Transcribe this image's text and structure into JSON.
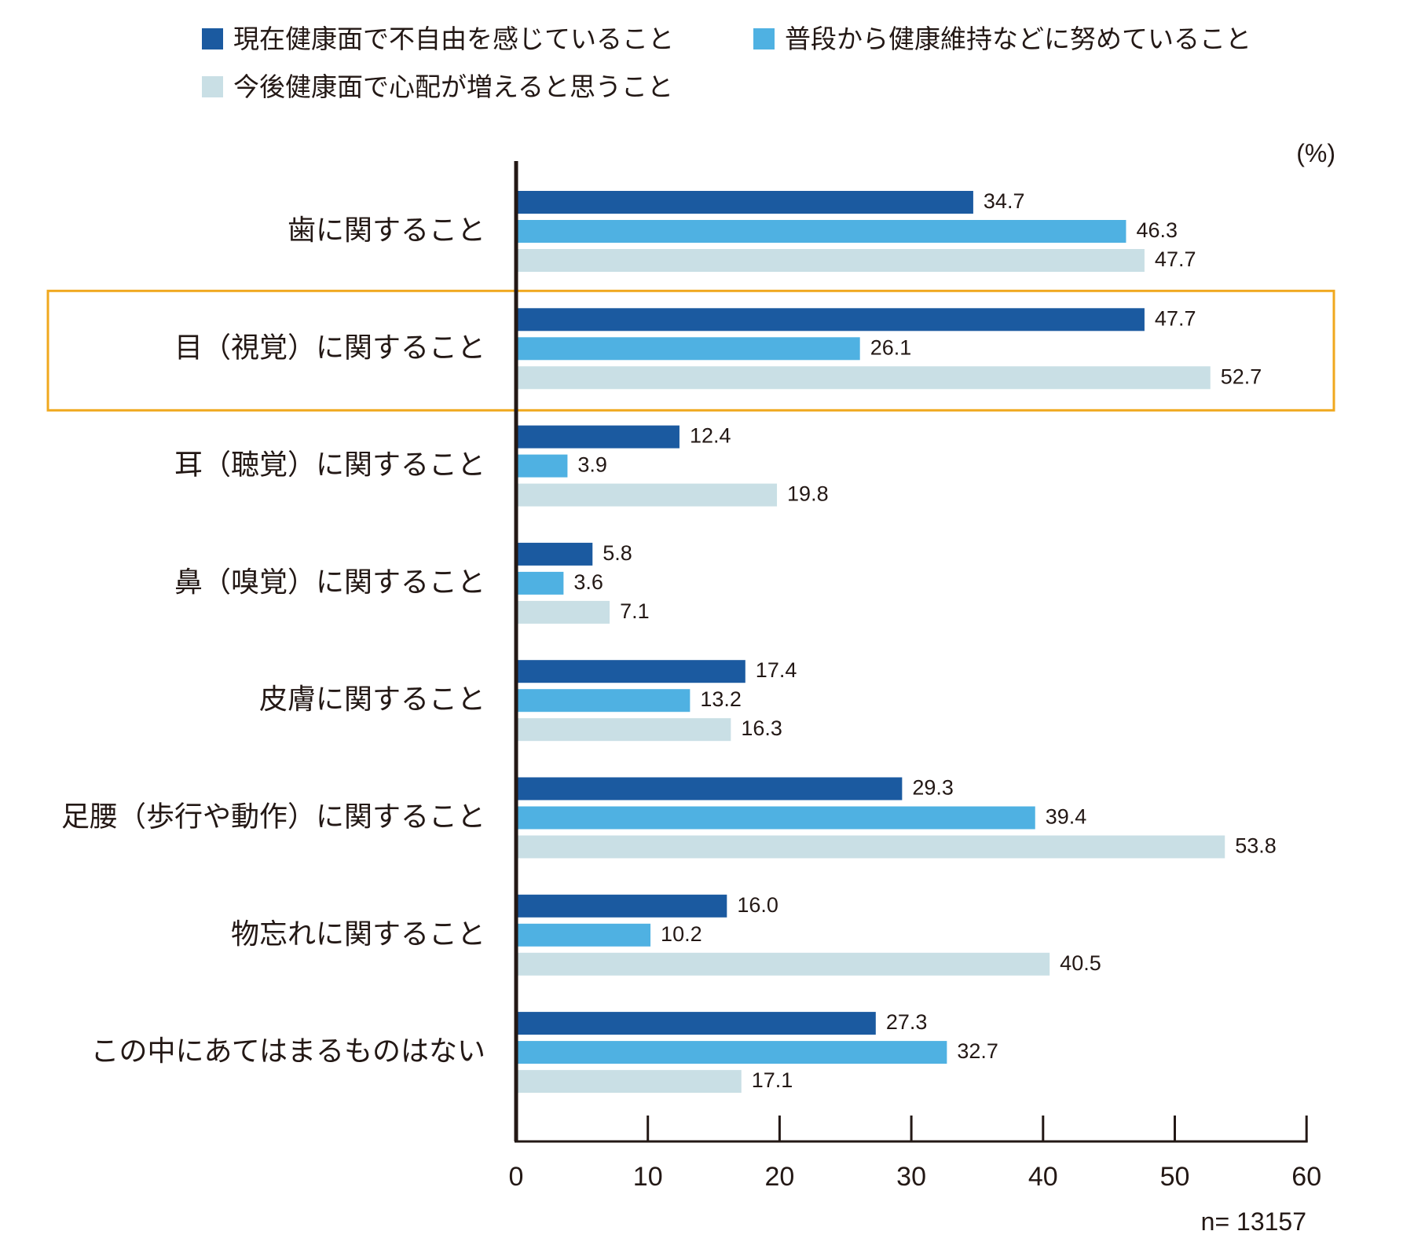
{
  "chart_data": {
    "type": "bar",
    "orientation": "horizontal",
    "unit": "(%)",
    "sample_note": "n= 13157",
    "xlim": [
      0,
      60
    ],
    "xticks": [
      0,
      10,
      20,
      30,
      40,
      50,
      60
    ],
    "categories": [
      "歯に関すること",
      "目（視覚）に関すること",
      "耳（聴覚）に関すること",
      "鼻（嗅覚）に関すること",
      "皮膚に関すること",
      "足腰（歩行や動作）に関すること",
      "物忘れに関すること",
      "この中にあてはまるものはない"
    ],
    "series": [
      {
        "name": "現在健康面で不自由を感じていること",
        "color": "#1b5aa0",
        "values": [
          34.7,
          47.7,
          12.4,
          5.8,
          17.4,
          29.3,
          16.0,
          27.3
        ]
      },
      {
        "name": "普段から健康維持などに努めていること",
        "color": "#4fb1e2",
        "values": [
          46.3,
          26.1,
          3.9,
          3.6,
          13.2,
          39.4,
          10.2,
          32.7
        ]
      },
      {
        "name": "今後健康面で心配が増えると思うこと",
        "color": "#c9dfe5",
        "values": [
          47.7,
          52.7,
          19.8,
          7.1,
          16.3,
          53.8,
          40.5,
          17.1
        ]
      }
    ],
    "value_labels": [
      [
        "34.7",
        "47.7",
        "12.4",
        "5.8",
        "17.4",
        "29.3",
        "16.0",
        "27.3"
      ],
      [
        "46.3",
        "26.1",
        "3.9",
        "3.6",
        "13.2",
        "39.4",
        "10.2",
        "32.7"
      ],
      [
        "47.7",
        "52.7",
        "19.8",
        "7.1",
        "16.3",
        "53.8",
        "40.5",
        "17.1"
      ]
    ],
    "highlight_category": 1,
    "highlight_color": "#f0a81e",
    "legend_position": "top"
  }
}
